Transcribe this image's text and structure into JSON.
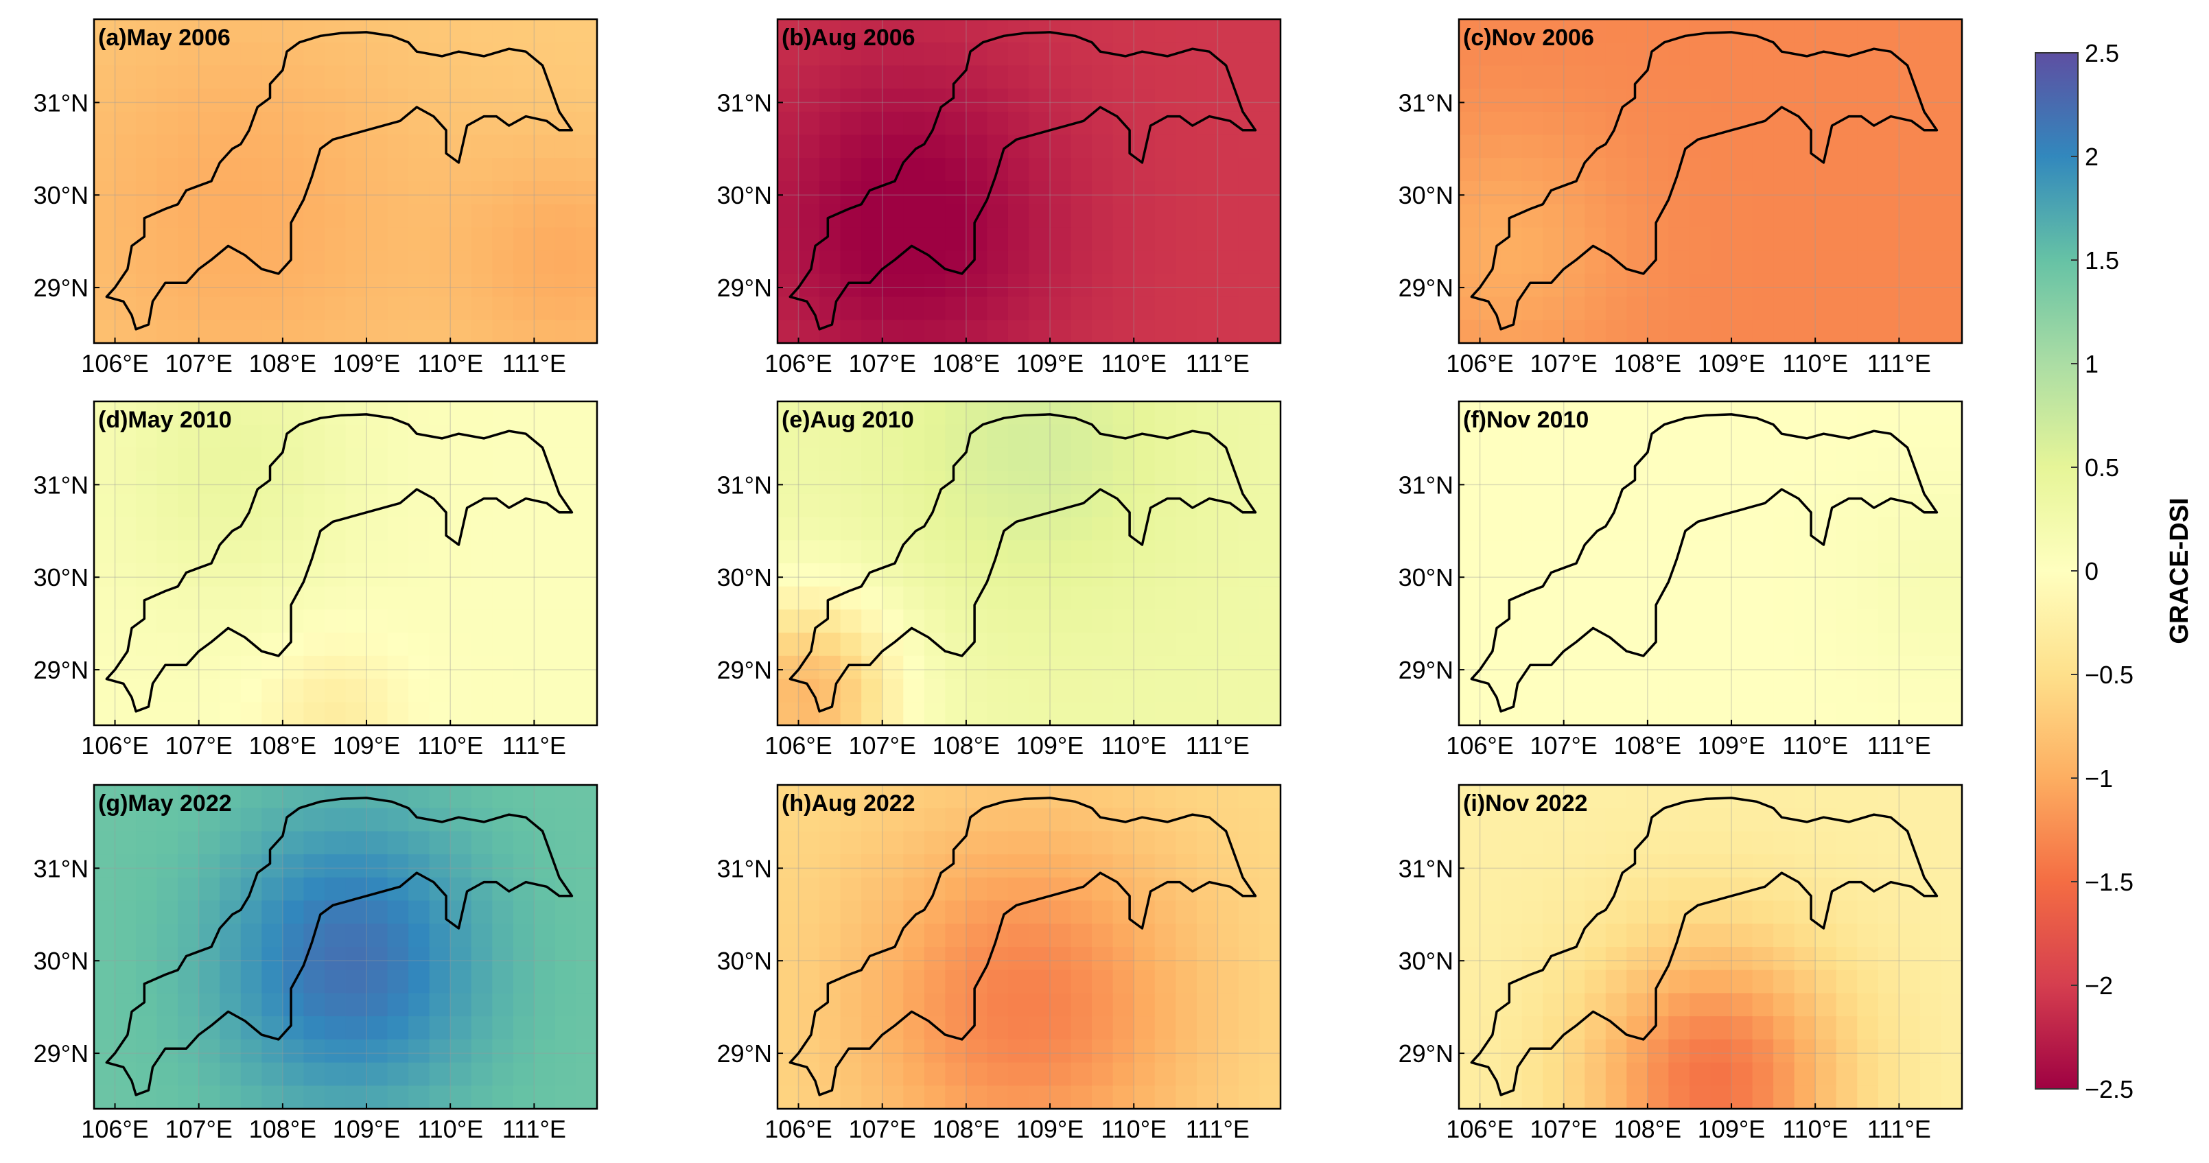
{
  "chart_data": {
    "type": "heatmap",
    "colorbar": {
      "label": "GRACE-DSI",
      "range": [
        -2.5,
        2.5
      ],
      "ticks": [
        "2.5",
        "2",
        "1.5",
        "1",
        "0.5",
        "0",
        "−0.5",
        "−1",
        "−1.5",
        "−2",
        "−2.5"
      ],
      "colormap": "Spectral",
      "stops": [
        "#9e0142",
        "#d53e4f",
        "#f46d43",
        "#fdae61",
        "#fee08b",
        "#ffffbf",
        "#e6f598",
        "#abdda4",
        "#66c2a5",
        "#3288bd",
        "#5e4fa2"
      ]
    },
    "x_tick_labels": [
      "106°E",
      "107°E",
      "108°E",
      "109°E",
      "110°E",
      "111°E"
    ],
    "y_tick_labels": [
      "31°N",
      "30°N",
      "29°N"
    ],
    "x_ticks": [
      106,
      107,
      108,
      109,
      110,
      111
    ],
    "y_ticks": [
      31,
      30,
      29
    ],
    "xlim": [
      105.75,
      111.75
    ],
    "ylim": [
      28.4,
      31.9
    ],
    "panels": [
      {
        "title": "(a)May 2006",
        "field": {
          "base": -0.7,
          "terms": [
            [
              107.5,
              29.8,
              -0.3,
              1.6
            ],
            [
              111.4,
              29.3,
              -0.3,
              0.9
            ]
          ]
        }
      },
      {
        "title": "(b)Aug 2006",
        "field": {
          "base": -2.05,
          "terms": [
            [
              107.3,
              29.7,
              -0.5,
              1.3
            ]
          ]
        }
      },
      {
        "title": "(c)Nov 2006",
        "field": {
          "base": -1.3,
          "terms": [
            [
              106.3,
              29.4,
              0.3,
              1.0
            ]
          ]
        }
      },
      {
        "title": "(d)May 2010",
        "field": {
          "base": 0.05,
          "terms": [
            [
              107.4,
              31.2,
              0.35,
              1.1
            ],
            [
              108.6,
              28.5,
              -0.35,
              0.6
            ]
          ]
        }
      },
      {
        "title": "(e)Aug 2010",
        "field": {
          "base": 0.3,
          "terms": [
            [
              108.8,
              31.4,
              0.35,
              1.2
            ],
            [
              106.1,
              28.7,
              -1.2,
              0.8
            ]
          ]
        }
      },
      {
        "title": "(f)Nov 2010",
        "field": {
          "base": 0.0,
          "terms": [
            [
              111.5,
              30.0,
              0.15,
              0.8
            ]
          ]
        }
      },
      {
        "title": "(g)May 2022",
        "field": {
          "base": 1.45,
          "terms": [
            [
              108.8,
              30.0,
              0.75,
              1.1
            ]
          ]
        }
      },
      {
        "title": "(h)Aug 2022",
        "field": {
          "base": -0.55,
          "terms": [
            [
              108.7,
              29.5,
              -0.8,
              1.4
            ]
          ]
        }
      },
      {
        "title": "(i)Nov 2022",
        "field": {
          "base": -0.25,
          "terms": [
            [
              108.8,
              28.7,
              -1.2,
              1.1
            ]
          ]
        }
      }
    ]
  }
}
